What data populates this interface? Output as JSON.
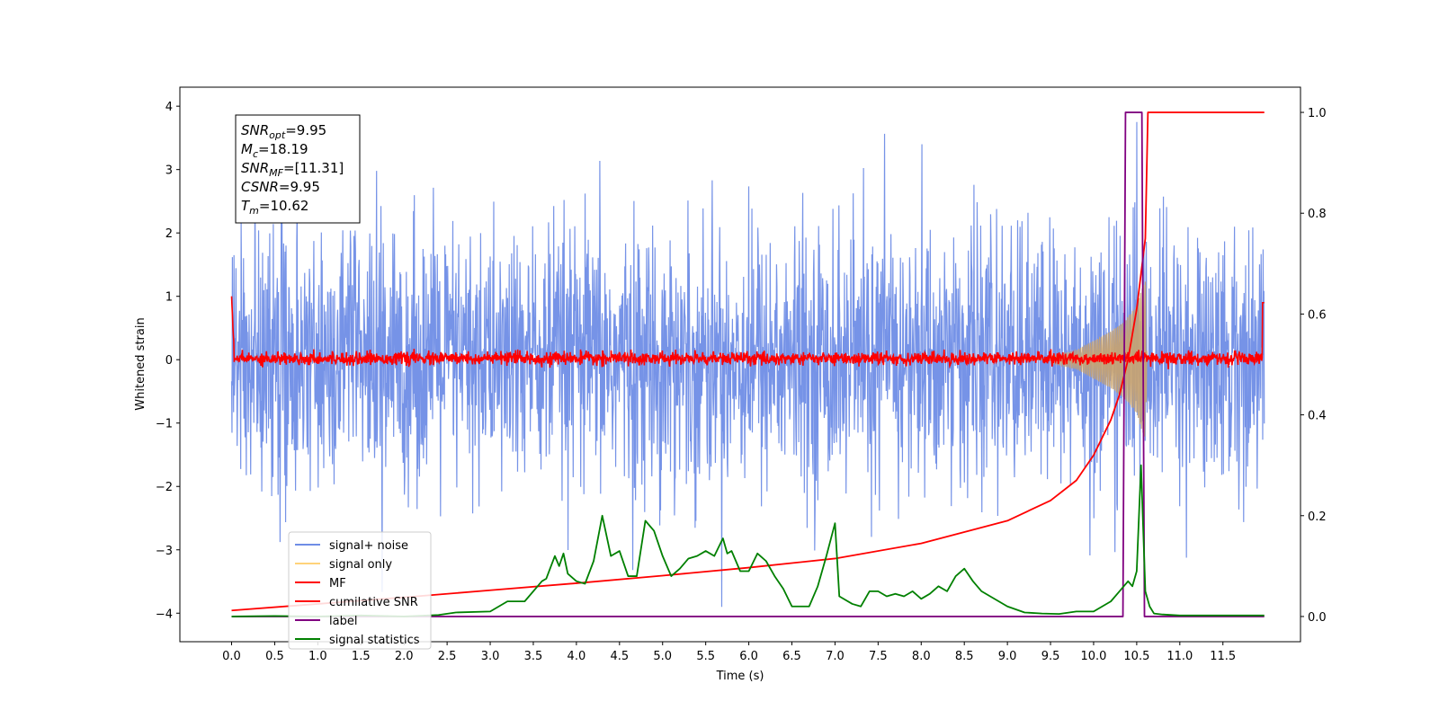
{
  "chart_data": {
    "type": "line",
    "xlabel": "Time (s)",
    "ylabel": "Whitened strain",
    "xlim": [
      -0.6,
      12.4
    ],
    "ylim": [
      -4.45,
      4.3
    ],
    "ylim_right": [
      -0.05,
      1.05
    ],
    "xticks": [
      "0.0",
      "0.5",
      "1.0",
      "1.5",
      "2.0",
      "2.5",
      "3.0",
      "3.5",
      "4.0",
      "4.5",
      "5.0",
      "5.5",
      "6.0",
      "6.5",
      "7.0",
      "7.5",
      "8.0",
      "8.5",
      "9.0",
      "9.5",
      "10.0",
      "10.5",
      "11.0",
      "11.5"
    ],
    "yticks_left": [
      "4",
      "3",
      "2",
      "1",
      "0",
      "−1",
      "−2",
      "−3",
      "−4"
    ],
    "yticks_right": [
      "1.0",
      "0.8",
      "0.6",
      "0.4",
      "0.2",
      "0.0"
    ],
    "legend_position": "lower-left",
    "legend": [
      {
        "label": "signal+ noise",
        "color": "#6f8de6"
      },
      {
        "label": "signal only",
        "color": "#ffd37a"
      },
      {
        "label": "MF",
        "color": "#ff0000"
      },
      {
        "label": "cumilative SNR",
        "color": "#ff0000"
      },
      {
        "label": "label",
        "color": "#800080"
      },
      {
        "label": "signal statistics",
        "color": "#008000"
      }
    ],
    "annotation": [
      {
        "name": "SNR",
        "sub": "opt",
        "value": "=9.95"
      },
      {
        "name": "M",
        "sub": "c",
        "value": "=18.19"
      },
      {
        "name": "SNR",
        "sub": "MF",
        "value": "=[11.31]"
      },
      {
        "name": "CSNR",
        "sub": "",
        "value": "=9.95"
      },
      {
        "name": "T",
        "sub": "m",
        "value": "=10.62"
      }
    ],
    "series": [
      {
        "name": "signal+ noise",
        "axis": "left",
        "color": "#6f8de6",
        "x_range": [
          0.0,
          11.98
        ],
        "range_typical": [
          -2.3,
          2.3
        ],
        "range_extreme": [
          -3.9,
          3.75
        ]
      },
      {
        "name": "signal only",
        "axis": "left",
        "color": "#c9a36e",
        "envelope": {
          "x": [
            9.5,
            9.8,
            10.0,
            10.2,
            10.35,
            10.5,
            10.6,
            10.62
          ],
          "amp": [
            0.05,
            0.15,
            0.3,
            0.45,
            0.6,
            0.85,
            1.3,
            0.0
          ]
        }
      },
      {
        "name": "MF",
        "axis": "left",
        "color": "#ff0000",
        "x_range": [
          0.0,
          11.98
        ],
        "range_typical": [
          -0.1,
          0.15
        ],
        "start_value": 1.0,
        "end_value": 0.9
      },
      {
        "name": "cumilative SNR",
        "axis": "right",
        "color": "#ff0000",
        "x": [
          0.0,
          1.0,
          2.0,
          3.0,
          4.0,
          5.0,
          6.0,
          7.0,
          8.0,
          9.0,
          9.5,
          9.8,
          10.0,
          10.2,
          10.3,
          10.4,
          10.5,
          10.55,
          10.6,
          10.63,
          11.98
        ],
        "y": [
          0.012,
          0.025,
          0.038,
          0.052,
          0.066,
          0.081,
          0.097,
          0.115,
          0.145,
          0.19,
          0.23,
          0.27,
          0.32,
          0.39,
          0.44,
          0.51,
          0.61,
          0.68,
          0.75,
          1.0,
          1.0
        ]
      },
      {
        "name": "label",
        "axis": "right",
        "color": "#800080",
        "x": [
          0.0,
          10.34,
          10.37,
          10.56,
          10.59,
          11.98
        ],
        "y": [
          0.0,
          0.0,
          1.0,
          1.0,
          0.0,
          0.0
        ]
      },
      {
        "name": "signal statistics",
        "axis": "right",
        "color": "#008000",
        "x": [
          0.0,
          0.5,
          1.0,
          1.5,
          2.0,
          2.4,
          2.6,
          3.0,
          3.2,
          3.4,
          3.6,
          3.65,
          3.75,
          3.8,
          3.85,
          3.9,
          4.0,
          4.1,
          4.2,
          4.3,
          4.35,
          4.4,
          4.5,
          4.6,
          4.7,
          4.8,
          4.85,
          4.9,
          5.0,
          5.1,
          5.2,
          5.3,
          5.4,
          5.5,
          5.6,
          5.7,
          5.75,
          5.8,
          5.9,
          6.0,
          6.1,
          6.2,
          6.3,
          6.4,
          6.5,
          6.6,
          6.7,
          6.8,
          6.9,
          7.0,
          7.05,
          7.2,
          7.3,
          7.4,
          7.5,
          7.6,
          7.7,
          7.8,
          7.9,
          8.0,
          8.1,
          8.2,
          8.3,
          8.4,
          8.5,
          8.6,
          8.7,
          8.8,
          8.9,
          9.0,
          9.2,
          9.4,
          9.6,
          9.8,
          10.0,
          10.2,
          10.3,
          10.4,
          10.45,
          10.5,
          10.55,
          10.6,
          10.65,
          10.7,
          10.8,
          11.0,
          11.5,
          11.98
        ],
        "y": [
          0.0,
          0.001,
          0.0,
          0.002,
          0.0,
          0.003,
          0.008,
          0.01,
          0.03,
          0.03,
          0.07,
          0.075,
          0.12,
          0.1,
          0.125,
          0.085,
          0.07,
          0.065,
          0.11,
          0.2,
          0.16,
          0.12,
          0.13,
          0.08,
          0.08,
          0.19,
          0.18,
          0.17,
          0.12,
          0.08,
          0.095,
          0.115,
          0.12,
          0.13,
          0.12,
          0.155,
          0.125,
          0.13,
          0.09,
          0.09,
          0.125,
          0.11,
          0.08,
          0.055,
          0.02,
          0.02,
          0.02,
          0.06,
          0.12,
          0.185,
          0.04,
          0.025,
          0.02,
          0.05,
          0.05,
          0.04,
          0.045,
          0.04,
          0.05,
          0.035,
          0.045,
          0.06,
          0.05,
          0.08,
          0.095,
          0.07,
          0.05,
          0.04,
          0.03,
          0.02,
          0.008,
          0.006,
          0.005,
          0.01,
          0.01,
          0.03,
          0.05,
          0.07,
          0.06,
          0.09,
          0.3,
          0.05,
          0.02,
          0.006,
          0.004,
          0.002,
          0.002,
          0.002
        ]
      }
    ]
  }
}
